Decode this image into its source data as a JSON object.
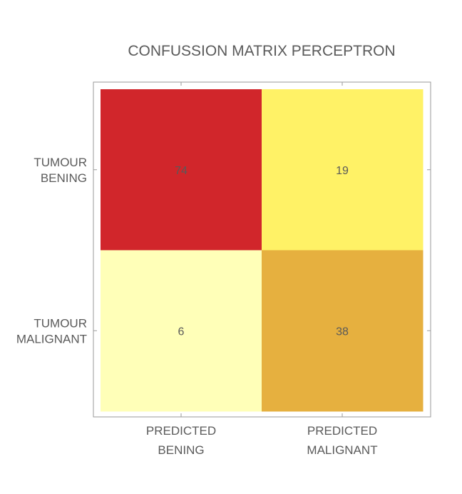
{
  "chart_data": {
    "type": "heatmap",
    "title": "CONFUSSION MATRIX PERCEPTRON",
    "rows": [
      {
        "label_lines": [
          "TUMOUR",
          "BENING"
        ]
      },
      {
        "label_lines": [
          "TUMOUR",
          "MALIGNANT"
        ]
      }
    ],
    "columns": [
      {
        "label_lines": [
          "PREDICTED",
          "BENING"
        ]
      },
      {
        "label_lines": [
          "PREDICTED",
          "MALIGNANT"
        ]
      }
    ],
    "values": [
      [
        74,
        19
      ],
      [
        6,
        38
      ]
    ],
    "cell_colors": [
      [
        "#d1262b",
        "#fff266"
      ],
      [
        "#ffffb8",
        "#e6b03f"
      ]
    ],
    "grid": false,
    "legend": "none"
  }
}
